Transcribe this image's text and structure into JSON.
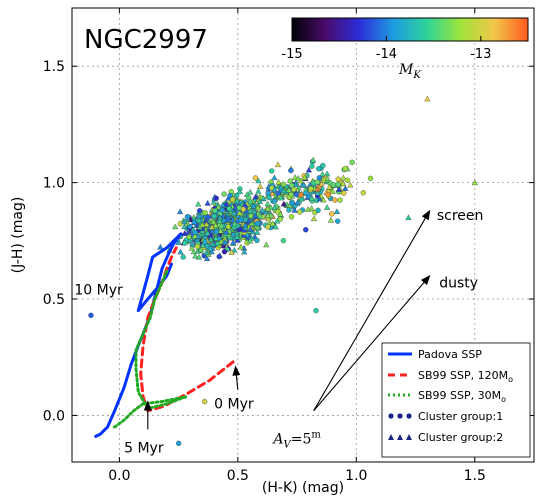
{
  "chart_data": {
    "type": "scatter",
    "title": "NGC2997",
    "xlabel": "(H-K) (mag)",
    "ylabel": "(J-H) (mag)",
    "xlim": [
      -0.2,
      1.75
    ],
    "ylim": [
      -0.2,
      1.75
    ],
    "xticks": [
      "0.0",
      "0.5",
      "1.0",
      "1.5"
    ],
    "yticks": [
      "0.0",
      "0.5",
      "1.0",
      "1.5"
    ],
    "grid": true,
    "colorbar": {
      "label": "M",
      "label_sub": "K",
      "range": [
        -15,
        -12.5
      ],
      "ticks": [
        "-15",
        "-14",
        "-13"
      ],
      "colormap": [
        "#000004",
        "#4a0c6b",
        "#2c2cd8",
        "#1e9be0",
        "#2fd39a",
        "#9fe43a",
        "#f2c64a",
        "#ff5a1f"
      ]
    },
    "series": [
      {
        "name": "Padova SSP",
        "kind": "line",
        "style": "solid",
        "color": "#0033ff",
        "points": [
          [
            -0.1,
            -0.09
          ],
          [
            -0.08,
            -0.08
          ],
          [
            -0.05,
            -0.05
          ],
          [
            -0.02,
            0.02
          ],
          [
            0.02,
            0.12
          ],
          [
            0.05,
            0.22
          ],
          [
            0.08,
            0.3
          ],
          [
            0.1,
            0.35
          ],
          [
            0.13,
            0.43
          ],
          [
            0.16,
            0.55
          ],
          [
            0.18,
            0.63
          ],
          [
            0.21,
            0.7
          ],
          [
            0.23,
            0.74
          ],
          [
            0.26,
            0.78
          ],
          [
            0.24,
            0.76
          ],
          [
            0.2,
            0.72
          ],
          [
            0.14,
            0.68
          ],
          [
            0.12,
            0.6
          ],
          [
            0.08,
            0.45
          ],
          [
            0.12,
            0.5
          ],
          [
            0.17,
            0.56
          ],
          [
            0.2,
            0.6
          ],
          [
            0.22,
            0.65
          ]
        ]
      },
      {
        "name": "SB99 SSP, 120M",
        "name_sub": "o",
        "kind": "line",
        "style": "dashed",
        "color": "#ff2020",
        "points": [
          [
            0.48,
            0.23
          ],
          [
            0.38,
            0.15
          ],
          [
            0.28,
            0.09
          ],
          [
            0.19,
            0.04
          ],
          [
            0.12,
            0.02
          ],
          [
            0.1,
            0.08
          ],
          [
            0.09,
            0.18
          ],
          [
            0.1,
            0.3
          ],
          [
            0.12,
            0.42
          ],
          [
            0.15,
            0.5
          ],
          [
            0.18,
            0.57
          ],
          [
            0.2,
            0.63
          ],
          [
            0.22,
            0.68
          ],
          [
            0.24,
            0.72
          ]
        ]
      },
      {
        "name": "SB99 SSP, 30M",
        "name_sub": "o",
        "kind": "line",
        "style": "dotted",
        "color": "#22aa22",
        "points": [
          [
            -0.02,
            -0.05
          ],
          [
            0.02,
            -0.02
          ],
          [
            0.06,
            0.02
          ],
          [
            0.1,
            0.05
          ],
          [
            0.18,
            0.06
          ],
          [
            0.28,
            0.08
          ],
          [
            0.2,
            0.05
          ],
          [
            0.12,
            0.03
          ],
          [
            0.08,
            0.1
          ],
          [
            0.07,
            0.2
          ],
          [
            0.07,
            0.28
          ],
          [
            0.1,
            0.35
          ],
          [
            0.13,
            0.42
          ],
          [
            0.15,
            0.5
          ],
          [
            0.18,
            0.57
          ],
          [
            0.2,
            0.62
          ]
        ]
      },
      {
        "name": "Cluster group:1",
        "kind": "marker",
        "marker": "circle",
        "color": "#1a237e"
      },
      {
        "name": "Cluster group:2",
        "kind": "marker",
        "marker": "triangle",
        "color": "#1a237e"
      }
    ],
    "annotations": [
      {
        "text": "10 Myr",
        "text_at": [
          -0.19,
          0.52
        ],
        "arrow_to": null
      },
      {
        "text": "5 Myr",
        "text_at": [
          0.02,
          -0.16
        ],
        "arrow_from": [
          0.12,
          -0.06
        ],
        "arrow_to": [
          0.12,
          0.06
        ]
      },
      {
        "text": "0 Myr",
        "text_at": [
          0.4,
          0.03
        ],
        "arrow_from": [
          0.5,
          0.11
        ],
        "arrow_to": [
          0.49,
          0.21
        ]
      },
      {
        "text": "screen",
        "text_at": [
          1.34,
          0.84
        ],
        "arrow_from": [
          0.82,
          0.02
        ],
        "arrow_to": [
          1.31,
          0.88
        ]
      },
      {
        "text": "dusty",
        "text_at": [
          1.35,
          0.55
        ],
        "arrow_from": [
          0.82,
          0.02
        ],
        "arrow_to": [
          1.31,
          0.6
        ]
      }
    ],
    "av_label": {
      "prefix": "A",
      "sub": "V",
      "value": "=5",
      "sup": "m",
      "at": [
        0.65,
        -0.12
      ]
    },
    "legend_position": "lower-right"
  }
}
